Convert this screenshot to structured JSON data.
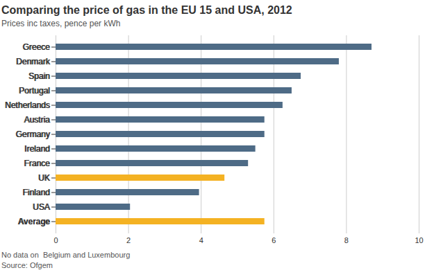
{
  "chart_data": {
    "type": "bar",
    "orientation": "horizontal",
    "title": "Comparing the price of gas in the EU 15 and USA, 2012",
    "subtitle": "Prices inc taxes, pence per kWh",
    "categories": [
      "Greece",
      "Denmark",
      "Spain",
      "Portugal",
      "Netherlands",
      "Austria",
      "Germany",
      "Ireland",
      "France",
      "UK",
      "Finland",
      "USA",
      "Average"
    ],
    "values": [
      8.7,
      7.8,
      6.75,
      6.5,
      6.25,
      5.75,
      5.75,
      5.5,
      5.3,
      4.65,
      3.95,
      2.05,
      5.75
    ],
    "colors": [
      "#4e6b86",
      "#4e6b86",
      "#4e6b86",
      "#4e6b86",
      "#4e6b86",
      "#4e6b86",
      "#4e6b86",
      "#4e6b86",
      "#4e6b86",
      "#f4b223",
      "#4e6b86",
      "#4e6b86",
      "#f4b223"
    ],
    "xlim": [
      0,
      10
    ],
    "xticks": [
      0,
      2,
      4,
      6,
      8,
      10
    ],
    "grid": true,
    "caption": "No data on  Belgium and Luxembourg",
    "source": "Source: Ofgem"
  }
}
